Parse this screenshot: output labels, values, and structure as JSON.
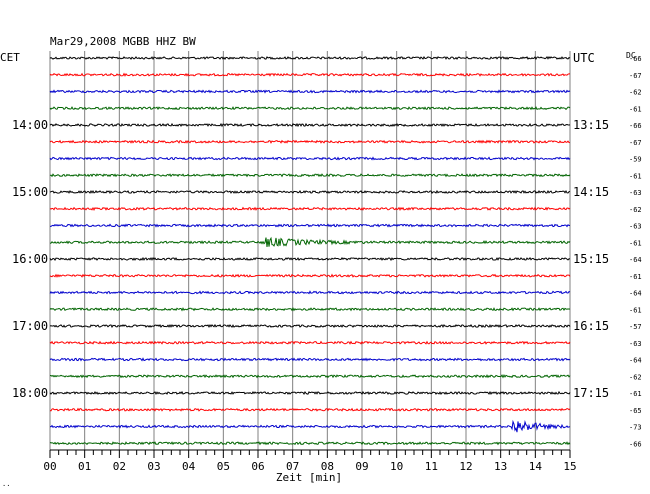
{
  "header": {
    "title": "Mar29,2008   MGBB HHZ BW",
    "left_tz": "CET",
    "right_tz": "UTC",
    "dc_label": "DC",
    "x_axis_label": "Zeit [min]",
    "corner_mark": "··"
  },
  "colors": {
    "cycle": [
      "#000000",
      "#ff0000",
      "#0000cc",
      "#006400"
    ],
    "grid": "#808080"
  },
  "chart_data": {
    "type": "line",
    "title": "Mar29,2008   MGBB HHZ BW",
    "xlabel": "Zeit [min]",
    "xlim": [
      0,
      15
    ],
    "x_ticks": [
      "00",
      "01",
      "02",
      "03",
      "04",
      "05",
      "06",
      "07",
      "08",
      "09",
      "10",
      "11",
      "12",
      "13",
      "14",
      "15"
    ],
    "trace_minutes": 15,
    "traces_count": 24,
    "left_time_labels": [
      {
        "trace": 4,
        "text": "14:00"
      },
      {
        "trace": 8,
        "text": "15:00"
      },
      {
        "trace": 12,
        "text": "16:00"
      },
      {
        "trace": 16,
        "text": "17:00"
      },
      {
        "trace": 20,
        "text": "18:00"
      }
    ],
    "right_time_labels": [
      {
        "trace": 0,
        "text": "UTC"
      },
      {
        "trace": 4,
        "text": "13:15"
      },
      {
        "trace": 8,
        "text": "14:15"
      },
      {
        "trace": 12,
        "text": "15:15"
      },
      {
        "trace": 16,
        "text": "16:15"
      },
      {
        "trace": 20,
        "text": "17:15"
      }
    ],
    "dc_offsets": [
      "-66",
      "-67",
      "-62",
      "-61",
      "-66",
      "-67",
      "-59",
      "-61",
      "-63",
      "-62",
      "-63",
      "-61",
      "-64",
      "-61",
      "-64",
      "-61",
      "-57",
      "-63",
      "-64",
      "-62",
      "-61",
      "-65",
      "-73",
      "-66"
    ],
    "events": [
      {
        "trace": 11,
        "start_min": 6.1,
        "duration_min": 3.0,
        "amplitude": 5
      },
      {
        "trace": 22,
        "start_min": 13.3,
        "duration_min": 1.6,
        "amplitude": 9
      }
    ]
  }
}
